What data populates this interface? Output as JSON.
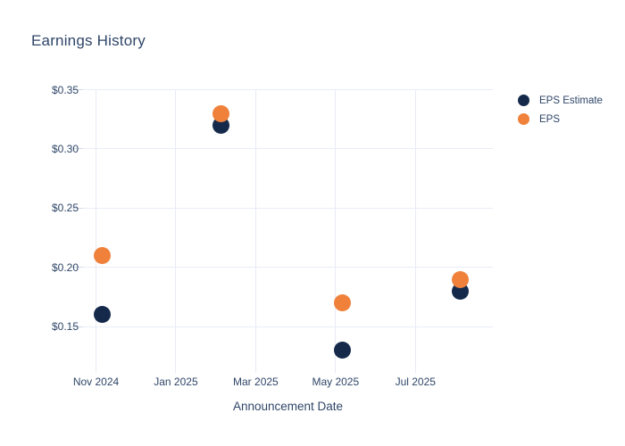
{
  "chart_data": {
    "type": "scatter",
    "title": "Earnings History",
    "xlabel": "Announcement Date",
    "ylabel": "",
    "grid": true,
    "legend_position": "right",
    "colors": {
      "eps_estimate": "#152a4b",
      "eps": "#ef813b",
      "gridline": "#e9edf5",
      "text": "#2f4668",
      "background": "#ffffff"
    },
    "y_axis": {
      "range": [
        0.117,
        0.35
      ],
      "ticks": [
        0.35,
        0.3,
        0.25,
        0.2,
        0.15
      ],
      "tick_labels": [
        "$0.35",
        "$0.30",
        "$0.25",
        "$0.20",
        "$0.15"
      ]
    },
    "x_axis": {
      "ticks": [
        {
          "label": "Nov 2024",
          "date": "2024-11-01"
        },
        {
          "label": "Jan 2025",
          "date": "2025-01-01"
        },
        {
          "label": "Mar 2025",
          "date": "2025-03-01"
        },
        {
          "label": "May 2025",
          "date": "2025-05-01"
        },
        {
          "label": "Jul 2025",
          "date": "2025-07-01"
        }
      ]
    },
    "series": [
      {
        "name": "EPS Estimate",
        "color": "#152a4b",
        "points": [
          {
            "date": "2024-11-06",
            "value": 0.16
          },
          {
            "date": "2025-02-05",
            "value": 0.32
          },
          {
            "date": "2025-05-06",
            "value": 0.13
          },
          {
            "date": "2025-08-05",
            "value": 0.18
          }
        ]
      },
      {
        "name": "EPS",
        "color": "#ef813b",
        "points": [
          {
            "date": "2024-11-06",
            "value": 0.21
          },
          {
            "date": "2025-02-05",
            "value": 0.33
          },
          {
            "date": "2025-05-06",
            "value": 0.17
          },
          {
            "date": "2025-08-05",
            "value": 0.19
          }
        ]
      }
    ]
  }
}
